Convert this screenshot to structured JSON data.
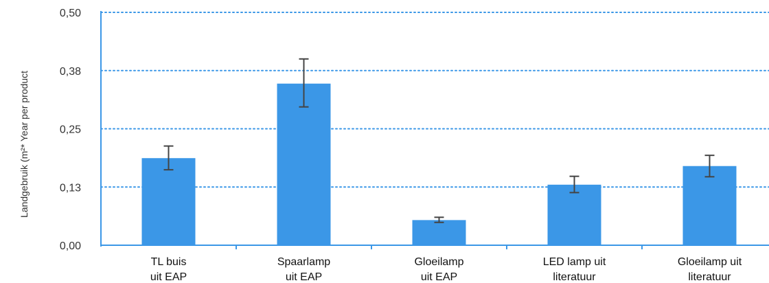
{
  "chart_data": {
    "type": "bar",
    "title": "",
    "xlabel": "",
    "ylabel": "Landgebruik (m²* Year per product",
    "ylim": [
      0,
      0.5
    ],
    "y_ticks": [
      "0,00",
      "0,13",
      "0,25",
      "0,38",
      "0,50"
    ],
    "y_tick_values": [
      0,
      0.125,
      0.25,
      0.375,
      0.5
    ],
    "grid": true,
    "categories": [
      [
        "TL buis",
        "uit EAP"
      ],
      [
        "Spaarlamp",
        "uit EAP"
      ],
      [
        "Gloeilamp",
        "uit EAP"
      ],
      [
        "LED lamp uit",
        "literatuur"
      ],
      [
        "Gloeilamp uit",
        "literatuur"
      ]
    ],
    "values": [
      0.187,
      0.347,
      0.054,
      0.13,
      0.17
    ],
    "errors": [
      [
        0.162,
        0.213
      ],
      [
        0.297,
        0.4
      ],
      [
        0.049,
        0.06
      ],
      [
        0.113,
        0.148
      ],
      [
        0.147,
        0.193
      ]
    ],
    "colors": {
      "bar": "#3b97e7",
      "axis": "#3b97e7",
      "grid": "#3b97e7",
      "error": "#444444"
    }
  }
}
